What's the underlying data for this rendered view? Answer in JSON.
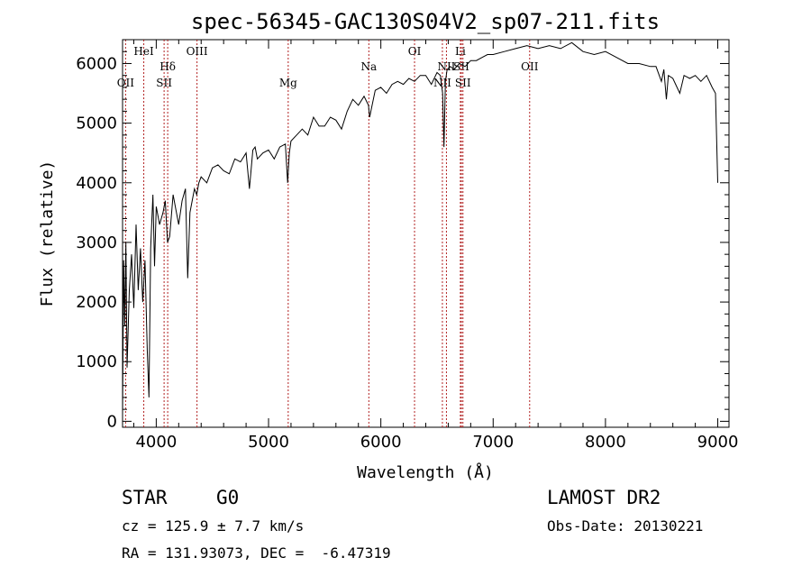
{
  "chart_data": {
    "type": "line",
    "title": "spec-56345-GAC130S04V2_sp07-211.fits",
    "xlabel": "Wavelength (Å)",
    "ylabel": "Flux (relative)",
    "xlim": [
      3700,
      9100
    ],
    "ylim": [
      -100,
      6400
    ],
    "xticks": [
      4000,
      5000,
      6000,
      7000,
      8000,
      9000
    ],
    "yticks": [
      0,
      1000,
      2000,
      3000,
      4000,
      5000,
      6000
    ],
    "grid": false,
    "series": [
      {
        "x": [
          3700,
          3710,
          3720,
          3730,
          3740,
          3760,
          3780,
          3800,
          3820,
          3840,
          3860,
          3880,
          3900,
          3920,
          3935,
          3950,
          3970,
          3985,
          4000,
          4030,
          4060,
          4080,
          4100,
          4120,
          4150,
          4180,
          4200,
          4230,
          4260,
          4280,
          4300,
          4320,
          4340,
          4360,
          4380,
          4400,
          4450,
          4500,
          4550,
          4600,
          4650,
          4700,
          4750,
          4800,
          4830,
          4860,
          4880,
          4900,
          4950,
          5000,
          5050,
          5100,
          5150,
          5170,
          5185,
          5200,
          5250,
          5300,
          5350,
          5400,
          5450,
          5500,
          5550,
          5600,
          5650,
          5700,
          5750,
          5800,
          5850,
          5890,
          5900,
          5950,
          6000,
          6050,
          6100,
          6150,
          6200,
          6250,
          6300,
          6350,
          6400,
          6450,
          6500,
          6530,
          6550,
          6562,
          6575,
          6590,
          6620,
          6650,
          6700,
          6750,
          6800,
          6850,
          6900,
          6950,
          7000,
          7100,
          7200,
          7300,
          7400,
          7500,
          7600,
          7700,
          7800,
          7900,
          8000,
          8100,
          8200,
          8300,
          8400,
          8450,
          8498,
          8520,
          8542,
          8560,
          8600,
          8662,
          8700,
          8750,
          8800,
          8850,
          8900,
          8950,
          8980,
          9000
        ],
        "y": [
          100,
          2700,
          1600,
          3000,
          900,
          2200,
          2800,
          1900,
          3300,
          2200,
          2900,
          2000,
          2700,
          1200,
          400,
          2900,
          3800,
          2600,
          3600,
          3300,
          3500,
          3700,
          3000,
          3100,
          3800,
          3500,
          3300,
          3700,
          3900,
          2400,
          3500,
          3700,
          3900,
          3800,
          4000,
          4100,
          4000,
          4250,
          4300,
          4200,
          4150,
          4400,
          4350,
          4500,
          3900,
          4550,
          4600,
          4400,
          4500,
          4550,
          4400,
          4600,
          4650,
          4000,
          4500,
          4700,
          4800,
          4900,
          4800,
          5100,
          4950,
          4950,
          5100,
          5050,
          4900,
          5200,
          5400,
          5300,
          5450,
          5300,
          5100,
          5550,
          5600,
          5500,
          5650,
          5700,
          5650,
          5750,
          5700,
          5800,
          5800,
          5650,
          5850,
          5800,
          5500,
          4600,
          5700,
          5900,
          5950,
          5900,
          6000,
          5950,
          6050,
          6050,
          6100,
          6150,
          6150,
          6200,
          6250,
          6300,
          6250,
          6300,
          6250,
          6350,
          6200,
          6150,
          6200,
          6100,
          6000,
          6000,
          5950,
          5950,
          5700,
          5900,
          5400,
          5800,
          5750,
          5500,
          5800,
          5750,
          5800,
          5700,
          5800,
          5600,
          5500,
          4000
        ]
      }
    ],
    "line_markers": [
      {
        "label": "OII",
        "x": 3727,
        "row": 3
      },
      {
        "label": "HeI",
        "x": 3889,
        "row": 1
      },
      {
        "label": "Hδ",
        "x": 4102,
        "row": 2
      },
      {
        "label": "SII",
        "x": 4070,
        "row": 3
      },
      {
        "label": "OIII",
        "x": 4363,
        "row": 1
      },
      {
        "label": "Mg",
        "x": 5175,
        "row": 3
      },
      {
        "label": "Na",
        "x": 5893,
        "row": 2
      },
      {
        "label": "OI",
        "x": 6300,
        "row": 1
      },
      {
        "label": "NII",
        "x": 6548,
        "row": 3
      },
      {
        "label": "NII",
        "x": 6584,
        "row": 2
      },
      {
        "label": "Li",
        "x": 6708,
        "row": 1
      },
      {
        "label": "SII",
        "x": 6717,
        "row": 2
      },
      {
        "label": "SII",
        "x": 6731,
        "row": 3
      },
      {
        "label": "OII",
        "x": 7325,
        "row": 2
      }
    ]
  },
  "info": {
    "object_class": "STAR",
    "subclass": "G0",
    "survey": "LAMOST DR2",
    "cz": "cz = 125.9 ± 7.7 km/s",
    "obs_date": "Obs-Date: 20130221",
    "coords": "RA = 131.93073, DEC =  -6.47319"
  },
  "colors": {
    "spectrum": "#000000",
    "marker_line": "#b22222",
    "axis": "#000000"
  }
}
